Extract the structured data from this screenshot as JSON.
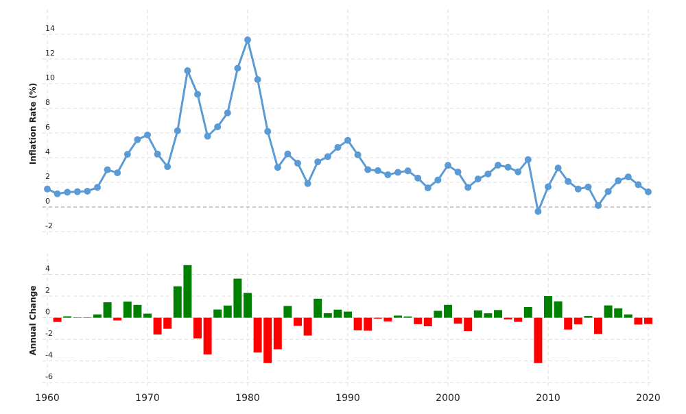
{
  "chart_data": [
    {
      "type": "line",
      "y_label": "Inflation Rate (%)",
      "x": [
        1960,
        1961,
        1962,
        1963,
        1964,
        1965,
        1966,
        1967,
        1968,
        1969,
        1970,
        1971,
        1972,
        1973,
        1974,
        1975,
        1976,
        1977,
        1978,
        1979,
        1980,
        1981,
        1982,
        1983,
        1984,
        1985,
        1986,
        1987,
        1988,
        1989,
        1990,
        1991,
        1992,
        1993,
        1994,
        1995,
        1996,
        1997,
        1998,
        1999,
        2000,
        2001,
        2002,
        2003,
        2004,
        2005,
        2006,
        2007,
        2008,
        2009,
        2010,
        2011,
        2012,
        2013,
        2014,
        2015,
        2016,
        2017,
        2018,
        2019,
        2020
      ],
      "values": [
        1.46,
        1.07,
        1.2,
        1.24,
        1.28,
        1.59,
        3.02,
        2.77,
        4.27,
        5.46,
        5.84,
        4.29,
        3.27,
        6.18,
        11.05,
        9.14,
        5.74,
        6.5,
        7.63,
        11.25,
        13.55,
        10.33,
        6.13,
        3.21,
        4.3,
        3.55,
        1.9,
        3.66,
        4.08,
        4.83,
        5.4,
        4.23,
        3.03,
        2.95,
        2.61,
        2.81,
        2.93,
        2.34,
        1.55,
        2.19,
        3.38,
        2.83,
        1.59,
        2.27,
        2.68,
        3.39,
        3.23,
        2.85,
        3.84,
        -0.36,
        1.64,
        3.16,
        2.07,
        1.46,
        1.62,
        0.12,
        1.26,
        2.13,
        2.44,
        1.81,
        1.23
      ],
      "color": "#5b9bd5",
      "xlim": [
        1960,
        2020
      ],
      "ylim": [
        -2.5,
        16
      ],
      "yticks": [
        -2,
        0,
        2,
        4,
        6,
        8,
        10,
        12,
        14
      ],
      "grid": true
    },
    {
      "type": "bar",
      "y_label": "Annual Change",
      "x": [
        1961,
        1962,
        1963,
        1964,
        1965,
        1966,
        1967,
        1968,
        1969,
        1970,
        1971,
        1972,
        1973,
        1974,
        1975,
        1976,
        1977,
        1978,
        1979,
        1980,
        1981,
        1982,
        1983,
        1984,
        1985,
        1986,
        1987,
        1988,
        1989,
        1990,
        1991,
        1992,
        1993,
        1994,
        1995,
        1996,
        1997,
        1998,
        1999,
        2000,
        2001,
        2002,
        2003,
        2004,
        2005,
        2006,
        2007,
        2008,
        2009,
        2010,
        2011,
        2012,
        2013,
        2014,
        2015,
        2016,
        2017,
        2018,
        2019,
        2020
      ],
      "values": [
        -0.39,
        0.13,
        0.04,
        0.04,
        0.31,
        1.43,
        -0.25,
        1.5,
        1.19,
        0.38,
        -1.55,
        -1.02,
        2.91,
        4.87,
        -1.91,
        -3.4,
        0.76,
        1.13,
        3.62,
        2.3,
        -3.22,
        -4.2,
        -2.92,
        1.09,
        -0.75,
        -1.65,
        1.76,
        0.42,
        0.75,
        0.57,
        -1.17,
        -1.2,
        -0.08,
        -0.34,
        0.2,
        0.12,
        -0.59,
        -0.79,
        0.64,
        1.19,
        -0.55,
        -1.24,
        0.68,
        0.41,
        0.71,
        -0.16,
        -0.38,
        0.99,
        -4.2,
        2.0,
        1.52,
        -1.09,
        -0.61,
        0.16,
        -1.5,
        1.14,
        0.87,
        0.31,
        -0.63,
        -0.58
      ],
      "pos_color": "#008000",
      "neg_color": "#ff0000",
      "xlim": [
        1960,
        2020
      ],
      "xticks": [
        1960,
        1970,
        1980,
        1990,
        2000,
        2010,
        2020
      ],
      "ylim": [
        -6.5,
        6
      ],
      "yticks": [
        -6,
        -4,
        -2,
        0,
        2,
        4
      ],
      "grid": true
    }
  ]
}
